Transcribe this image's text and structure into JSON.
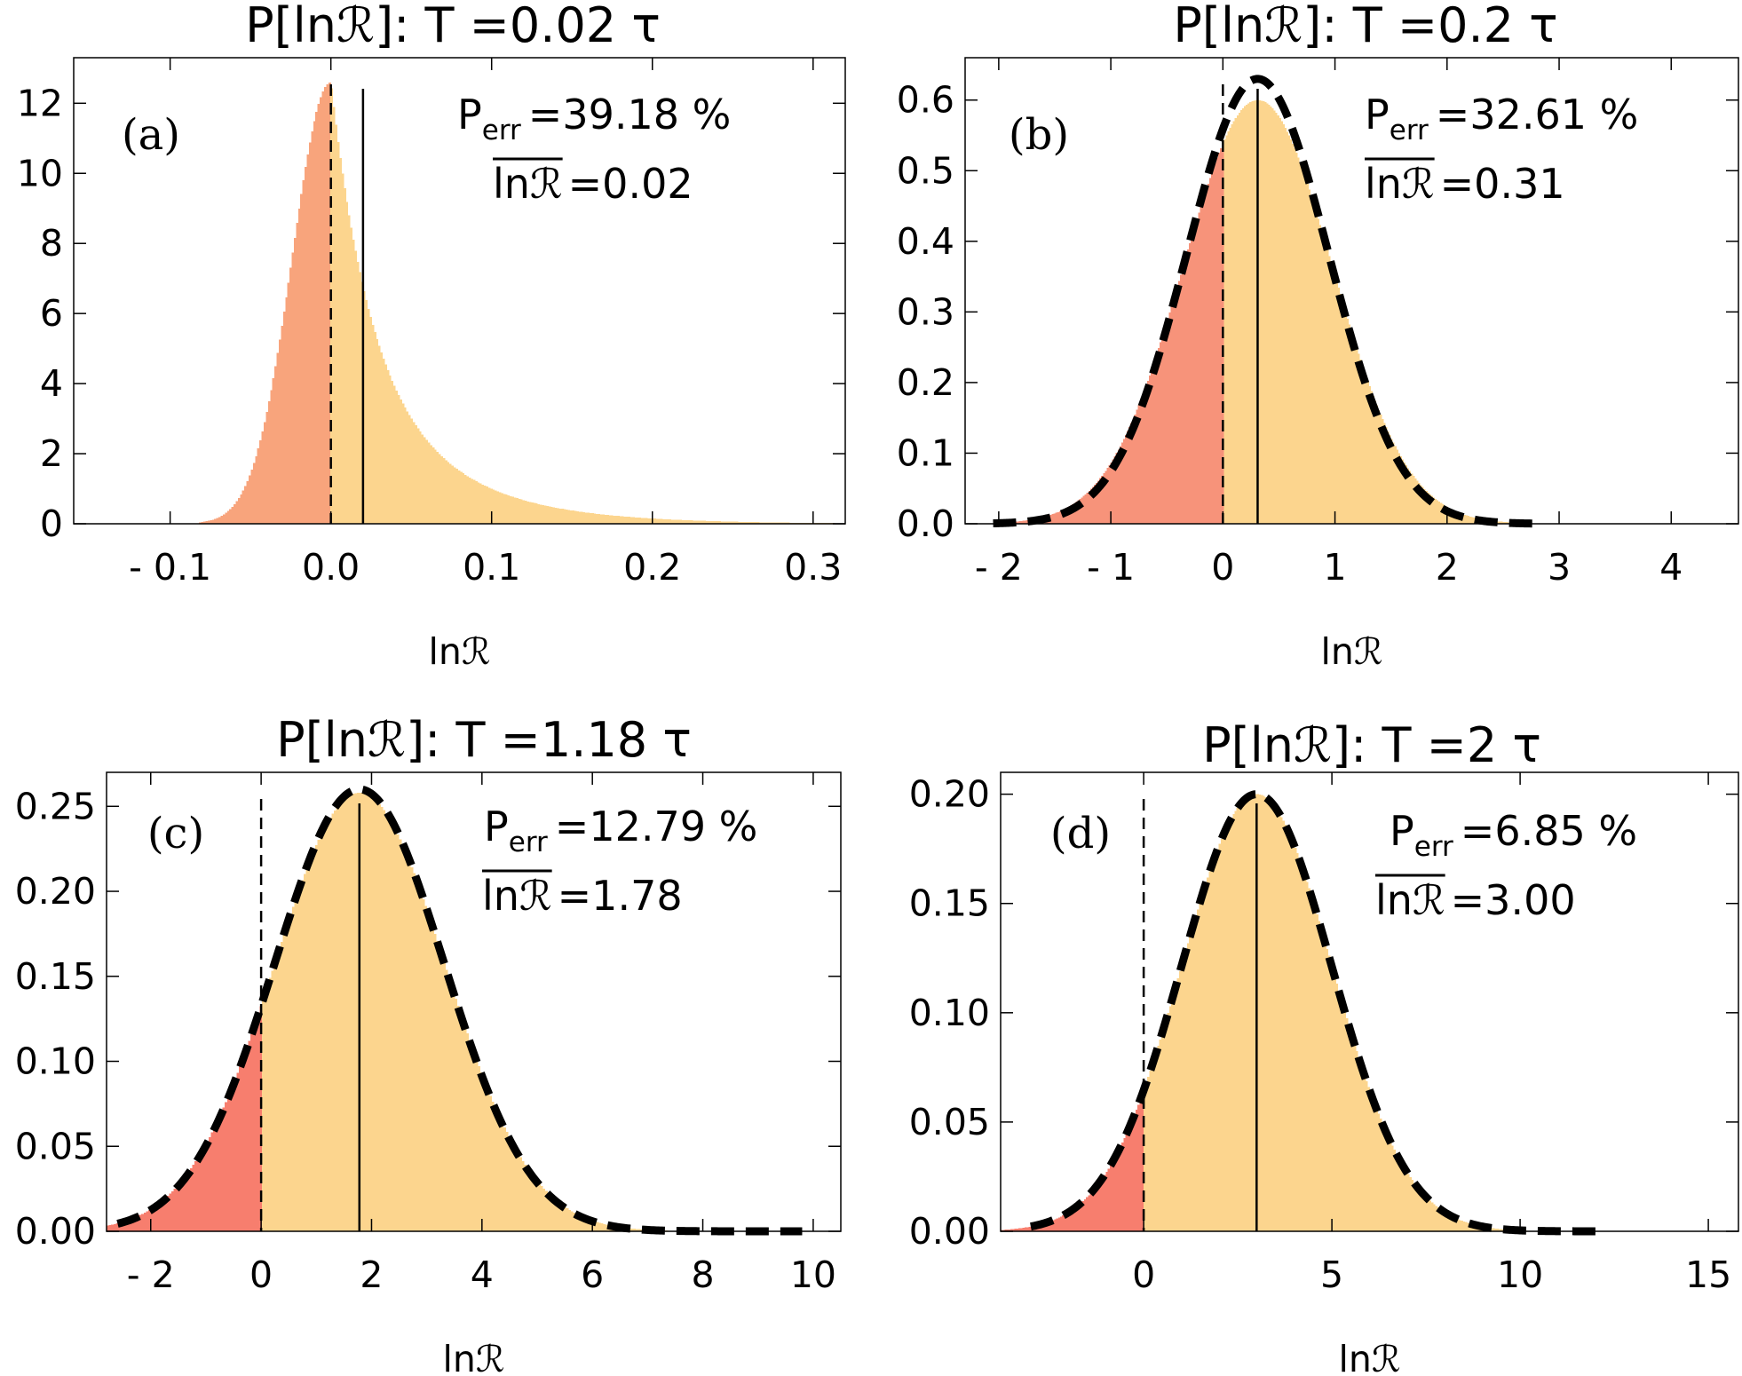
{
  "figure": {
    "panels": [
      {
        "id": "a",
        "label": "(a)",
        "title": "P[lnℛ]: T =0.02 τ",
        "xlabel": "lnℛ",
        "x_ticks": [
          -0.1,
          0.0,
          0.1,
          0.2,
          0.3
        ],
        "x_tick_labels": [
          "- 0.1",
          "0.0",
          "0.1",
          "0.2",
          "0.3"
        ],
        "y_ticks": [
          0,
          2,
          4,
          6,
          8,
          10,
          12
        ],
        "y_tick_labels": [
          "0",
          "2",
          "4",
          "6",
          "8",
          "10",
          "12"
        ],
        "annotation": {
          "p_err_symbol": "P",
          "p_err_sub": "err",
          "p_err_value": "=39.18 %",
          "mean_symbol": "lnℛ",
          "mean_value": "=0.02"
        }
      },
      {
        "id": "b",
        "label": "(b)",
        "title": "P[lnℛ]: T =0.2 τ",
        "xlabel": "lnℛ",
        "x_ticks": [
          -2,
          -1,
          0,
          1,
          2,
          3,
          4
        ],
        "x_tick_labels": [
          "- 2",
          "- 1",
          "0",
          "1",
          "2",
          "3",
          "4"
        ],
        "y_ticks": [
          0,
          0.1,
          0.2,
          0.3,
          0.4,
          0.5,
          0.6
        ],
        "y_tick_labels": [
          "0.0",
          "0.1",
          "0.2",
          "0.3",
          "0.4",
          "0.5",
          "0.6"
        ],
        "annotation": {
          "p_err_symbol": "P",
          "p_err_sub": "err",
          "p_err_value": "=32.61 %",
          "mean_symbol": "lnℛ",
          "mean_value": "=0.31"
        }
      },
      {
        "id": "c",
        "label": "(c)",
        "title": "P[lnℛ]: T =1.18 τ",
        "xlabel": "lnℛ",
        "x_ticks": [
          -2,
          0,
          2,
          4,
          6,
          8,
          10
        ],
        "x_tick_labels": [
          "- 2",
          "0",
          "2",
          "4",
          "6",
          "8",
          "10"
        ],
        "y_ticks": [
          0,
          0.05,
          0.1,
          0.15,
          0.2,
          0.25
        ],
        "y_tick_labels": [
          "0.00",
          "0.05",
          "0.10",
          "0.15",
          "0.20",
          "0.25"
        ],
        "annotation": {
          "p_err_symbol": "P",
          "p_err_sub": "err",
          "p_err_value": "=12.79 %",
          "mean_symbol": "lnℛ",
          "mean_value": "=1.78"
        }
      },
      {
        "id": "d",
        "label": "(d)",
        "title": "P[lnℛ]: T =2 τ",
        "xlabel": "lnℛ",
        "x_ticks": [
          0,
          5,
          10,
          15
        ],
        "x_tick_labels": [
          "0",
          "5",
          "10",
          "15"
        ],
        "y_ticks": [
          0,
          0.05,
          0.1,
          0.15,
          0.2
        ],
        "y_tick_labels": [
          "0.00",
          "0.05",
          "0.10",
          "0.15",
          "0.20"
        ],
        "annotation": {
          "p_err_symbol": "P",
          "p_err_sub": "err",
          "p_err_value": "=6.85 %",
          "mean_symbol": "lnℛ",
          "mean_value": "=3.00"
        }
      }
    ]
  },
  "chart_data": [
    {
      "type": "bar",
      "subtype": "histogram",
      "title": "P[lnℛ]: T =0.02 τ",
      "xlabel": "lnℛ",
      "ylabel": "",
      "xlim": [
        -0.16,
        0.32
      ],
      "ylim": [
        0,
        13.3
      ],
      "grid": false,
      "distribution": {
        "shape": "skewed-right",
        "mode": 0.0,
        "peak_density": 12.6,
        "x_start": -0.082,
        "x_end": 0.32,
        "sigma_left": 0.024,
        "tail_decay": 0.055
      },
      "error_threshold": 0.0,
      "mean": 0.02,
      "p_err_percent": 39.18,
      "fit_curve": false,
      "series": [
        {
          "name": "error region (lnℛ < 0)",
          "color": "#f8a47c"
        },
        {
          "name": "lnℛ ≥ 0",
          "color": "#fcd58e"
        }
      ]
    },
    {
      "type": "bar",
      "subtype": "histogram",
      "title": "P[lnℛ]: T =0.2 τ",
      "xlabel": "lnℛ",
      "ylabel": "",
      "xlim": [
        -2.3,
        4.6
      ],
      "ylim": [
        0,
        0.66
      ],
      "grid": false,
      "distribution": {
        "shape": "gaussian",
        "mean": 0.31,
        "peak_density": 0.6,
        "x_start": -2.05,
        "x_end": 2.85
      },
      "fit_curve": {
        "shape": "gaussian",
        "mean": 0.31,
        "peak": 0.63,
        "x_start": -2.05,
        "x_end": 2.85
      },
      "error_threshold": 0.0,
      "mean": 0.31,
      "p_err_percent": 32.61,
      "series": [
        {
          "name": "error region (lnℛ < 0)",
          "color": "#f7937a"
        },
        {
          "name": "lnℛ ≥ 0",
          "color": "#fcd58e"
        },
        {
          "name": "Gaussian fit",
          "color": "#000000"
        }
      ]
    },
    {
      "type": "bar",
      "subtype": "histogram",
      "title": "P[lnℛ]: T =1.18 τ",
      "xlabel": "lnℛ",
      "ylabel": "",
      "xlim": [
        -2.8,
        10.5
      ],
      "ylim": [
        0,
        0.27
      ],
      "grid": false,
      "distribution": {
        "shape": "gaussian",
        "mean": 1.78,
        "peak_density": 0.258,
        "x_start": -2.8,
        "x_end": 9.8
      },
      "fit_curve": {
        "shape": "gaussian",
        "mean": 1.78,
        "peak": 0.26,
        "x_start": -2.6,
        "x_end": 9.8
      },
      "error_threshold": 0.0,
      "mean": 1.78,
      "p_err_percent": 12.79,
      "series": [
        {
          "name": "error region (lnℛ < 0)",
          "color": "#f77e6e"
        },
        {
          "name": "lnℛ ≥ 0",
          "color": "#fcd58e"
        },
        {
          "name": "Gaussian fit",
          "color": "#000000"
        }
      ]
    },
    {
      "type": "bar",
      "subtype": "histogram",
      "title": "P[lnℛ]: T =2 τ",
      "xlabel": "lnℛ",
      "ylabel": "",
      "xlim": [
        -3.8,
        15.8
      ],
      "ylim": [
        0,
        0.21
      ],
      "grid": false,
      "distribution": {
        "shape": "gaussian",
        "mean": 3.0,
        "peak_density": 0.2,
        "x_start": -3.8,
        "x_end": 12.0
      },
      "fit_curve": {
        "shape": "gaussian",
        "mean": 3.0,
        "peak": 0.2,
        "x_start": -3.0,
        "x_end": 12.2
      },
      "error_threshold": 0.0,
      "mean": 3.0,
      "p_err_percent": 6.85,
      "series": [
        {
          "name": "error region (lnℛ < 0)",
          "color": "#f77e6e"
        },
        {
          "name": "lnℛ ≥ 0",
          "color": "#fcd58e"
        },
        {
          "name": "Gaussian fit",
          "color": "#000000"
        }
      ]
    }
  ]
}
